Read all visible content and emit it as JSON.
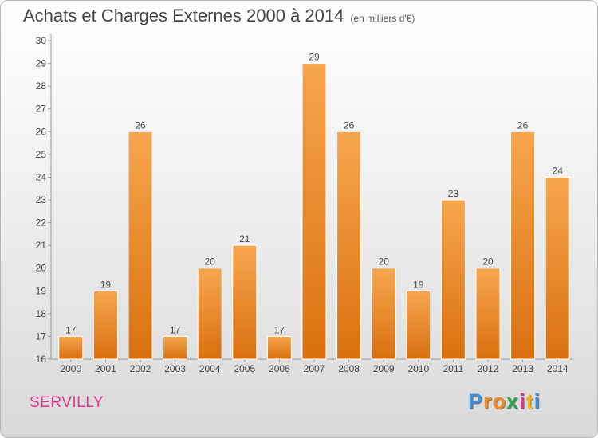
{
  "title": "Achats et Charges Externes 2000 à 2014",
  "subtitle": "(en milliers d'€)",
  "commune": "SERVILLY",
  "logo": {
    "letters": [
      "P",
      "r",
      "o",
      "x",
      "i",
      "t",
      "i"
    ],
    "colors": [
      "#3a8fd8",
      "#f28c1e",
      "#f28c1e",
      "#2aa64b",
      "#e0338a",
      "#f2b81e",
      "#3a8fd8"
    ]
  },
  "chart_data": {
    "type": "bar",
    "categories": [
      "2000",
      "2001",
      "2002",
      "2003",
      "2004",
      "2005",
      "2006",
      "2007",
      "2008",
      "2009",
      "2010",
      "2011",
      "2012",
      "2013",
      "2014"
    ],
    "values": [
      17,
      19,
      26,
      17,
      20,
      21,
      17,
      29,
      26,
      20,
      19,
      23,
      20,
      26,
      24
    ],
    "ylim": [
      16,
      30
    ],
    "yticks": [
      16,
      17,
      18,
      19,
      20,
      21,
      22,
      23,
      24,
      25,
      26,
      27,
      28,
      29,
      30
    ],
    "grid": false,
    "bar_color": "#f28c1e"
  }
}
